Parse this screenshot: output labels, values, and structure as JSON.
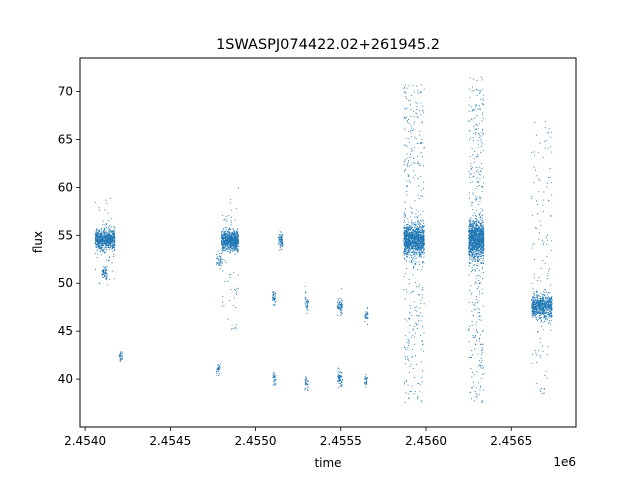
{
  "chart_data": {
    "type": "scatter",
    "title": "1SWASPJ074422.02+261945.2",
    "xlabel": "time",
    "ylabel": "flux",
    "x_offset_label": "1e6",
    "xlim": [
      2453970,
      2456880
    ],
    "ylim": [
      35.0,
      73.5
    ],
    "xticks": [
      2454000,
      2454500,
      2455000,
      2455500,
      2456000,
      2456500
    ],
    "xtick_labels": [
      "2.4540",
      "2.4545",
      "2.4550",
      "2.4555",
      "2.4560",
      "2.4565"
    ],
    "yticks": [
      40,
      45,
      50,
      55,
      60,
      65,
      70
    ],
    "ytick_labels": [
      "40",
      "45",
      "50",
      "55",
      "60",
      "65",
      "70"
    ],
    "grid": false,
    "point_color": "#1f77b4",
    "series": [
      {
        "clusters": [
          {
            "x": [
              2454060,
              2454175
            ],
            "y_center": 54.6,
            "y_spread": 0.9,
            "n": 700,
            "outlier_range": [
              49.5,
              59
            ],
            "n_outliers": 40
          },
          {
            "x": [
              2454100,
              2454130
            ],
            "y_center": 51.0,
            "y_spread": 0.6,
            "n": 60
          },
          {
            "x": [
              2454200,
              2454220
            ],
            "y_center": 42.4,
            "y_spread": 0.5,
            "n": 30
          },
          {
            "x": [
              2454770,
              2454800
            ],
            "y_center": 52.3,
            "y_spread": 0.6,
            "n": 40
          },
          {
            "x": [
              2454770,
              2454795
            ],
            "y_center": 41.0,
            "y_spread": 0.5,
            "n": 30
          },
          {
            "x": [
              2454800,
              2454900
            ],
            "y_center": 54.5,
            "y_spread": 0.9,
            "n": 700,
            "outlier_range": [
              45,
              60
            ],
            "n_outliers": 60
          },
          {
            "x": [
              2455100,
              2455120
            ],
            "y_center": 48.4,
            "y_spread": 0.6,
            "n": 40
          },
          {
            "x": [
              2455100,
              2455120
            ],
            "y_center": 40.0,
            "y_spread": 0.5,
            "n": 30
          },
          {
            "x": [
              2455135,
              2455160
            ],
            "y_center": 54.5,
            "y_spread": 0.7,
            "n": 80
          },
          {
            "x": [
              2455290,
              2455310
            ],
            "y_center": 47.8,
            "y_spread": 0.8,
            "n": 40
          },
          {
            "x": [
              2455290,
              2455310
            ],
            "y_center": 39.6,
            "y_spread": 0.6,
            "n": 30
          },
          {
            "x": [
              2455480,
              2455510
            ],
            "y_center": 47.6,
            "y_spread": 0.8,
            "n": 70
          },
          {
            "x": [
              2455480,
              2455510
            ],
            "y_center": 40.1,
            "y_spread": 0.7,
            "n": 60
          },
          {
            "x": [
              2455640,
              2455660
            ],
            "y_center": 46.5,
            "y_spread": 0.6,
            "n": 30
          },
          {
            "x": [
              2455640,
              2455660
            ],
            "y_center": 39.8,
            "y_spread": 0.5,
            "n": 25
          },
          {
            "x": [
              2455870,
              2455990
            ],
            "y_center": 54.5,
            "y_spread": 1.4,
            "n": 1100,
            "outlier_range": [
              37.5,
              71
            ],
            "n_outliers": 350
          },
          {
            "x": [
              2456250,
              2456340
            ],
            "y_center": 54.5,
            "y_spread": 1.6,
            "n": 1100,
            "outlier_range": [
              37.5,
              71.5
            ],
            "n_outliers": 350
          },
          {
            "x": [
              2456620,
              2456740
            ],
            "y_center": 47.6,
            "y_spread": 1.0,
            "n": 700,
            "outlier_range": [
              37.5,
              67
            ],
            "n_outliers": 130
          }
        ]
      }
    ]
  }
}
